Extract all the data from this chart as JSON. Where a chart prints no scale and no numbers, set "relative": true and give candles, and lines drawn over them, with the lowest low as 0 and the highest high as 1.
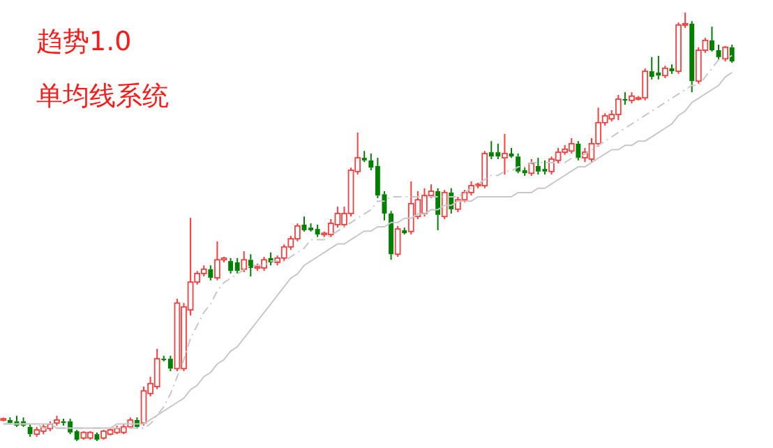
{
  "chart_data": {
    "type": "candlestick",
    "title": "趋势1.0",
    "subtitle": "单均线系统",
    "relative": true,
    "categories": [
      null,
      null,
      null,
      null,
      null,
      null,
      null,
      null,
      null,
      null,
      null,
      null,
      null,
      null,
      null,
      null,
      null,
      null,
      null,
      null,
      null,
      null,
      null,
      null,
      null,
      null,
      null,
      null,
      null,
      null,
      null,
      null,
      null,
      null,
      null,
      null,
      null,
      null,
      null,
      null,
      null,
      null,
      null,
      null,
      null,
      null,
      null,
      null,
      null,
      null,
      null,
      null,
      null,
      null,
      null,
      null,
      null,
      null,
      null,
      null,
      null,
      null,
      null,
      null,
      null,
      null,
      null,
      null,
      null,
      null,
      null,
      null,
      null,
      null,
      null,
      null,
      null,
      null,
      null,
      null,
      null,
      null,
      null,
      null,
      null,
      null,
      null,
      null,
      null,
      null,
      null,
      null,
      null,
      null,
      null,
      null,
      null,
      null,
      null,
      null,
      null,
      null,
      null,
      null,
      null,
      null,
      null,
      null,
      null,
      null
    ],
    "ohlc": [
      [
        0.049,
        0.055,
        0.046,
        0.052
      ],
      [
        0.049,
        0.055,
        0.039,
        0.042
      ],
      [
        0.046,
        0.059,
        0.033,
        0.036
      ],
      [
        0.046,
        0.055,
        0.033,
        0.036
      ],
      [
        0.033,
        0.039,
        0.01,
        0.016
      ],
      [
        0.016,
        0.033,
        0.01,
        0.026
      ],
      [
        0.023,
        0.039,
        0.016,
        0.033
      ],
      [
        0.029,
        0.046,
        0.023,
        0.039
      ],
      [
        0.042,
        0.059,
        0.036,
        0.049
      ],
      [
        0.046,
        0.052,
        0.036,
        0.042
      ],
      [
        0.046,
        0.052,
        0.016,
        0.02
      ],
      [
        0.023,
        0.026,
        0,
        0.003
      ],
      [
        0.007,
        0.023,
        0.003,
        0.02
      ],
      [
        0.007,
        0.023,
        0.003,
        0.02
      ],
      [
        0.016,
        0.02,
        0,
        0.003
      ],
      [
        0.007,
        0.026,
        0.003,
        0.023
      ],
      [
        0.016,
        0.029,
        0.013,
        0.026
      ],
      [
        0.02,
        0.036,
        0.016,
        0.029
      ],
      [
        0.02,
        0.039,
        0.016,
        0.033
      ],
      [
        0.033,
        0.055,
        0.029,
        0.049
      ],
      [
        0.049,
        0.055,
        0.029,
        0.033
      ],
      [
        0.042,
        0.127,
        0.036,
        0.117
      ],
      [
        0.111,
        0.15,
        0.104,
        0.134
      ],
      [
        0.127,
        0.215,
        0.121,
        0.192
      ],
      [
        0.192,
        0.199,
        0.186,
        0.189
      ],
      [
        0.192,
        0.199,
        0.163,
        0.169
      ],
      [
        0.169,
        0.332,
        0.163,
        0.322
      ],
      [
        0.169,
        0.322,
        0.163,
        0.313
      ],
      [
        0.306,
        0.521,
        0.293,
        0.371
      ],
      [
        0.371,
        0.397,
        0.365,
        0.391
      ],
      [
        0.391,
        0.41,
        0.384,
        0.401
      ],
      [
        0.401,
        0.41,
        0.375,
        0.381
      ],
      [
        0.381,
        0.466,
        0.375,
        0.423
      ],
      [
        0.423,
        0.43,
        0.417,
        0.427
      ],
      [
        0.42,
        0.427,
        0.391,
        0.397
      ],
      [
        0.417,
        0.427,
        0.391,
        0.397
      ],
      [
        0.401,
        0.443,
        0.394,
        0.423
      ],
      [
        0.423,
        0.436,
        0.384,
        0.404
      ],
      [
        0.404,
        0.414,
        0.397,
        0.407
      ],
      [
        0.404,
        0.43,
        0.397,
        0.423
      ],
      [
        0.427,
        0.44,
        0.41,
        0.417
      ],
      [
        0.417,
        0.433,
        0.41,
        0.427
      ],
      [
        0.427,
        0.459,
        0.42,
        0.453
      ],
      [
        0.453,
        0.479,
        0.446,
        0.472
      ],
      [
        0.472,
        0.508,
        0.466,
        0.502
      ],
      [
        0.505,
        0.524,
        0.489,
        0.492
      ],
      [
        0.498,
        0.508,
        0.489,
        0.492
      ],
      [
        0.495,
        0.505,
        0.476,
        0.482
      ],
      [
        0.482,
        0.489,
        0.476,
        0.485
      ],
      [
        0.482,
        0.518,
        0.476,
        0.508
      ],
      [
        0.505,
        0.547,
        0.498,
        0.531
      ],
      [
        0.505,
        0.547,
        0.498,
        0.531
      ],
      [
        0.531,
        0.638,
        0.524,
        0.632
      ],
      [
        0.629,
        0.72,
        0.622,
        0.661
      ],
      [
        0.661,
        0.677,
        0.651,
        0.655
      ],
      [
        0.655,
        0.671,
        0.632,
        0.638
      ],
      [
        0.642,
        0.661,
        0.567,
        0.573
      ],
      [
        0.576,
        0.583,
        0.515,
        0.531
      ],
      [
        0.531,
        0.537,
        0.423,
        0.436
      ],
      [
        0.436,
        0.502,
        0.43,
        0.495
      ],
      [
        0.492,
        0.498,
        0.482,
        0.485
      ],
      [
        0.489,
        0.606,
        0.482,
        0.554
      ],
      [
        0.524,
        0.583,
        0.518,
        0.563
      ],
      [
        0.531,
        0.59,
        0.524,
        0.573
      ],
      [
        0.573,
        0.599,
        0.567,
        0.583
      ],
      [
        0.583,
        0.59,
        0.492,
        0.528
      ],
      [
        0.524,
        0.586,
        0.518,
        0.58
      ],
      [
        0.58,
        0.59,
        0.531,
        0.541
      ],
      [
        0.541,
        0.57,
        0.534,
        0.563
      ],
      [
        0.563,
        0.586,
        0.557,
        0.58
      ],
      [
        0.58,
        0.606,
        0.573,
        0.596
      ],
      [
        0.596,
        0.603,
        0.59,
        0.599
      ],
      [
        0.596,
        0.677,
        0.59,
        0.671
      ],
      [
        0.674,
        0.7,
        0.658,
        0.664
      ],
      [
        0.674,
        0.694,
        0.658,
        0.664
      ],
      [
        0.661,
        0.717,
        0.622,
        0.671
      ],
      [
        0.671,
        0.684,
        0.661,
        0.664
      ],
      [
        0.664,
        0.671,
        0.625,
        0.629
      ],
      [
        0.632,
        0.638,
        0.619,
        0.625
      ],
      [
        0.625,
        0.658,
        0.619,
        0.648
      ],
      [
        0.642,
        0.661,
        0.622,
        0.629
      ],
      [
        0.635,
        0.655,
        0.622,
        0.629
      ],
      [
        0.629,
        0.664,
        0.622,
        0.658
      ],
      [
        0.655,
        0.684,
        0.648,
        0.674
      ],
      [
        0.674,
        0.691,
        0.668,
        0.681
      ],
      [
        0.677,
        0.707,
        0.671,
        0.694
      ],
      [
        0.694,
        0.7,
        0.655,
        0.661
      ],
      [
        0.661,
        0.684,
        0.651,
        0.674
      ],
      [
        0.658,
        0.707,
        0.651,
        0.694
      ],
      [
        0.694,
        0.778,
        0.687,
        0.743
      ],
      [
        0.743,
        0.765,
        0.736,
        0.759
      ],
      [
        0.752,
        0.772,
        0.746,
        0.762
      ],
      [
        0.762,
        0.808,
        0.749,
        0.798
      ],
      [
        0.798,
        0.814,
        0.785,
        0.795
      ],
      [
        0.795,
        0.814,
        0.788,
        0.805
      ],
      [
        0.798,
        0.805,
        0.795,
        0.801
      ],
      [
        0.801,
        0.87,
        0.795,
        0.863
      ],
      [
        0.863,
        0.896,
        0.844,
        0.85
      ],
      [
        0.86,
        0.899,
        0.844,
        0.853
      ],
      [
        0.853,
        0.876,
        0.847,
        0.87
      ],
      [
        0.87,
        0.879,
        0.857,
        0.863
      ],
      [
        0.863,
        0.977,
        0.857,
        0.971
      ],
      [
        0.971,
        1,
        0.964,
        0.974
      ],
      [
        0.974,
        0.98,
        0.814,
        0.84
      ],
      [
        0.84,
        0.919,
        0.834,
        0.912
      ],
      [
        0.912,
        0.941,
        0.906,
        0.935
      ],
      [
        0.935,
        0.967,
        0.909,
        0.912
      ],
      [
        0.912,
        0.925,
        0.889,
        0.896
      ],
      [
        0.892,
        0.922,
        0.886,
        0.919
      ],
      [
        0.919,
        0.925,
        0.883,
        0.886
      ]
    ],
    "colors": [
      "#ff3b3b",
      "#008000",
      "#008000",
      "#008000",
      "#008000",
      "#ff3b3b",
      "#ff3b3b",
      "#ff3b3b",
      "#ff3b3b",
      "#008000",
      "#008000",
      "#008000",
      "#ff3b3b",
      "#ff3b3b",
      "#008000",
      "#ff3b3b",
      "#ff3b3b",
      "#ff3b3b",
      "#ff3b3b",
      "#ff3b3b",
      "#008000",
      "#ff3b3b",
      "#ff3b3b",
      "#ff3b3b",
      "#008000",
      "#008000",
      "#ff3b3b",
      "#ff3b3b",
      "#ff3b3b",
      "#ff3b3b",
      "#ff3b3b",
      "#008000",
      "#ff3b3b",
      "#ff3b3b",
      "#008000",
      "#008000",
      "#ff3b3b",
      "#008000",
      "#ff3b3b",
      "#ff3b3b",
      "#008000",
      "#ff3b3b",
      "#ff3b3b",
      "#ff3b3b",
      "#ff3b3b",
      "#008000",
      "#008000",
      "#008000",
      "#ff3b3b",
      "#ff3b3b",
      "#ff3b3b",
      "#ff3b3b",
      "#ff3b3b",
      "#ff3b3b",
      "#008000",
      "#008000",
      "#008000",
      "#008000",
      "#008000",
      "#ff3b3b",
      "#008000",
      "#ff3b3b",
      "#ff3b3b",
      "#ff3b3b",
      "#ff3b3b",
      "#008000",
      "#ff3b3b",
      "#008000",
      "#ff3b3b",
      "#ff3b3b",
      "#ff3b3b",
      "#ff3b3b",
      "#ff3b3b",
      "#008000",
      "#008000",
      "#ff3b3b",
      "#008000",
      "#008000",
      "#008000",
      "#ff3b3b",
      "#008000",
      "#008000",
      "#ff3b3b",
      "#ff3b3b",
      "#ff3b3b",
      "#ff3b3b",
      "#008000",
      "#ff3b3b",
      "#ff3b3b",
      "#ff3b3b",
      "#ff3b3b",
      "#ff3b3b",
      "#ff3b3b",
      "#008000",
      "#ff3b3b",
      "#ff3b3b",
      "#ff3b3b",
      "#008000",
      "#008000",
      "#ff3b3b",
      "#008000",
      "#ff3b3b",
      "#ff3b3b",
      "#008000",
      "#ff3b3b",
      "#ff3b3b",
      "#008000",
      "#008000",
      "#ff3b3b",
      "#008000"
    ],
    "series": [
      {
        "type": "line",
        "color": "#c8c8c8",
        "line_style": "solid",
        "values": [
          0.04,
          0.04,
          0.04,
          0.04,
          0.04,
          0.04,
          0.04,
          0.04,
          0.03,
          0.03,
          0.03,
          0.03,
          0.03,
          0.03,
          0.03,
          0.03,
          0.03,
          0.04,
          0.04,
          0.04,
          0.04,
          0.04,
          0.05,
          0.06,
          0.07,
          0.08,
          0.09,
          0.1,
          0.12,
          0.13,
          0.15,
          0.16,
          0.18,
          0.19,
          0.21,
          0.22,
          0.24,
          0.26,
          0.28,
          0.3,
          0.32,
          0.34,
          0.36,
          0.38,
          0.39,
          0.41,
          0.42,
          0.43,
          0.44,
          0.45,
          0.46,
          0.46,
          0.47,
          0.48,
          0.49,
          0.49,
          0.5,
          0.5,
          0.51,
          0.51,
          0.52,
          0.52,
          0.53,
          0.53,
          0.54,
          0.54,
          0.55,
          0.55,
          0.56,
          0.56,
          0.56,
          0.57,
          0.57,
          0.57,
          0.57,
          0.57,
          0.57,
          0.58,
          0.58,
          0.58,
          0.59,
          0.59,
          0.6,
          0.61,
          0.62,
          0.63,
          0.64,
          0.64,
          0.65,
          0.66,
          0.67,
          0.68,
          0.68,
          0.69,
          0.69,
          0.7,
          0.7,
          0.71,
          0.72,
          0.73,
          0.74,
          0.76,
          0.77,
          0.79,
          0.8,
          0.81,
          0.82,
          0.83,
          0.85,
          0.86
        ]
      },
      {
        "type": "line",
        "color": "#c8c8c8",
        "line_style": "dashed",
        "values": [
          0.04,
          0.04,
          0.04,
          0.04,
          0.04,
          0.04,
          0.03,
          0.03,
          0.03,
          0.03,
          0.03,
          0.03,
          0.03,
          0.03,
          0.03,
          0.03,
          0.03,
          0.03,
          0.03,
          0.03,
          0.03,
          0.03,
          0.04,
          0.06,
          0.08,
          0.11,
          0.15,
          0.19,
          0.24,
          0.27,
          0.3,
          0.32,
          0.35,
          0.37,
          0.38,
          0.39,
          0.4,
          0.41,
          0.41,
          0.41,
          0.42,
          0.42,
          0.42,
          0.43,
          0.44,
          0.45,
          0.47,
          0.47,
          0.47,
          0.48,
          0.49,
          0.5,
          0.51,
          0.52,
          0.53,
          0.54,
          0.56,
          0.56,
          0.57,
          0.57,
          0.57,
          0.57,
          0.57,
          0.57,
          0.57,
          0.57,
          0.57,
          0.57,
          0.57,
          0.58,
          0.59,
          0.6,
          0.61,
          0.62,
          0.62,
          0.63,
          0.63,
          0.64,
          0.64,
          0.65,
          0.65,
          0.65,
          0.65,
          0.65,
          0.65,
          0.66,
          0.66,
          0.67,
          0.68,
          0.69,
          0.7,
          0.71,
          0.72,
          0.73,
          0.74,
          0.75,
          0.76,
          0.77,
          0.78,
          0.79,
          0.8,
          0.81,
          0.82,
          0.83,
          0.83,
          0.85,
          0.87,
          0.89,
          0.89,
          0.9
        ]
      }
    ]
  }
}
